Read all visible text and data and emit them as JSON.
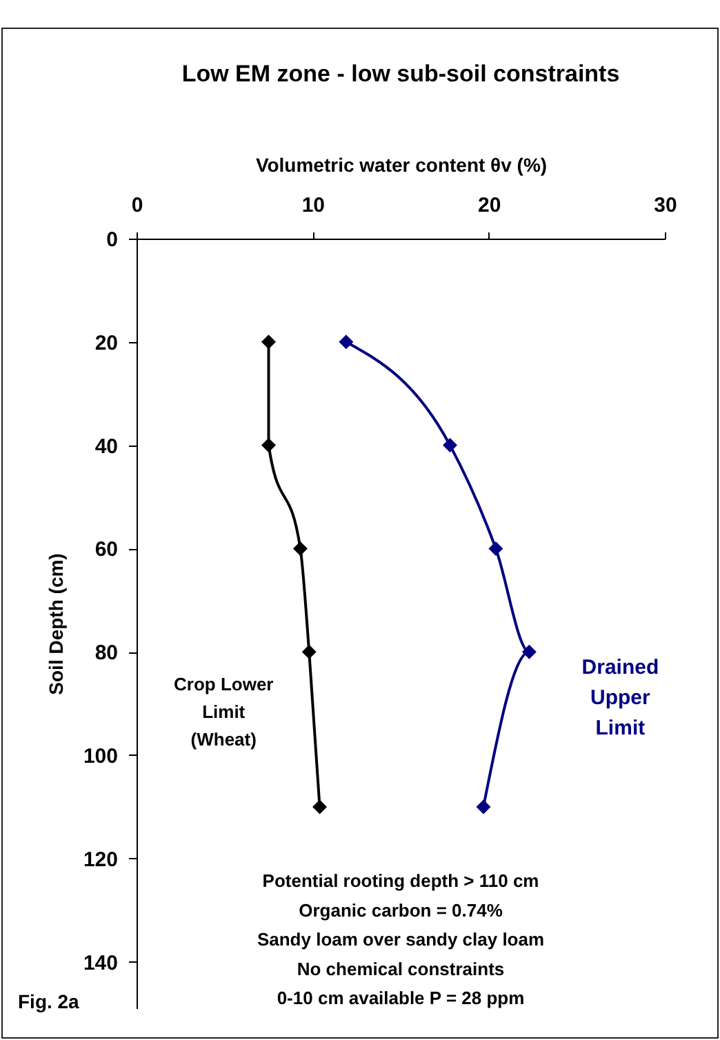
{
  "chart_data": {
    "type": "line",
    "title": "Low EM zone - low  sub-soil constraints",
    "xlabel": "Volumetric water content θv (%)",
    "ylabel": "Soil Depth (cm)",
    "series": [
      {
        "name": "Crop Lower Limit (Wheat)",
        "color": "#000000",
        "x": [
          7.5,
          7.5,
          9.3,
          9.8,
          10.4
        ],
        "values": [
          20,
          40,
          60,
          80,
          110
        ]
      },
      {
        "name": "Drained Upper Limit",
        "color": "#000080",
        "x": [
          11.9,
          17.8,
          20.4,
          22.3,
          19.7
        ],
        "values": [
          20,
          40,
          60,
          80,
          110
        ]
      }
    ],
    "xlim": [
      0,
      30
    ],
    "xticks": [
      0,
      10,
      20,
      30
    ],
    "ylim": [
      149,
      0
    ],
    "yticks": [
      0,
      20,
      40,
      60,
      80,
      100,
      120,
      140
    ],
    "marker": "diamond",
    "line_style": "solid",
    "legend": false,
    "annotations": [
      "Potential rooting depth > 110 cm",
      "Organic carbon = 0.74%",
      "Sandy loam over sandy clay loam",
      "No chemical constraints",
      "0-10 cm available P = 28 ppm",
      "Fig. 2a"
    ]
  }
}
